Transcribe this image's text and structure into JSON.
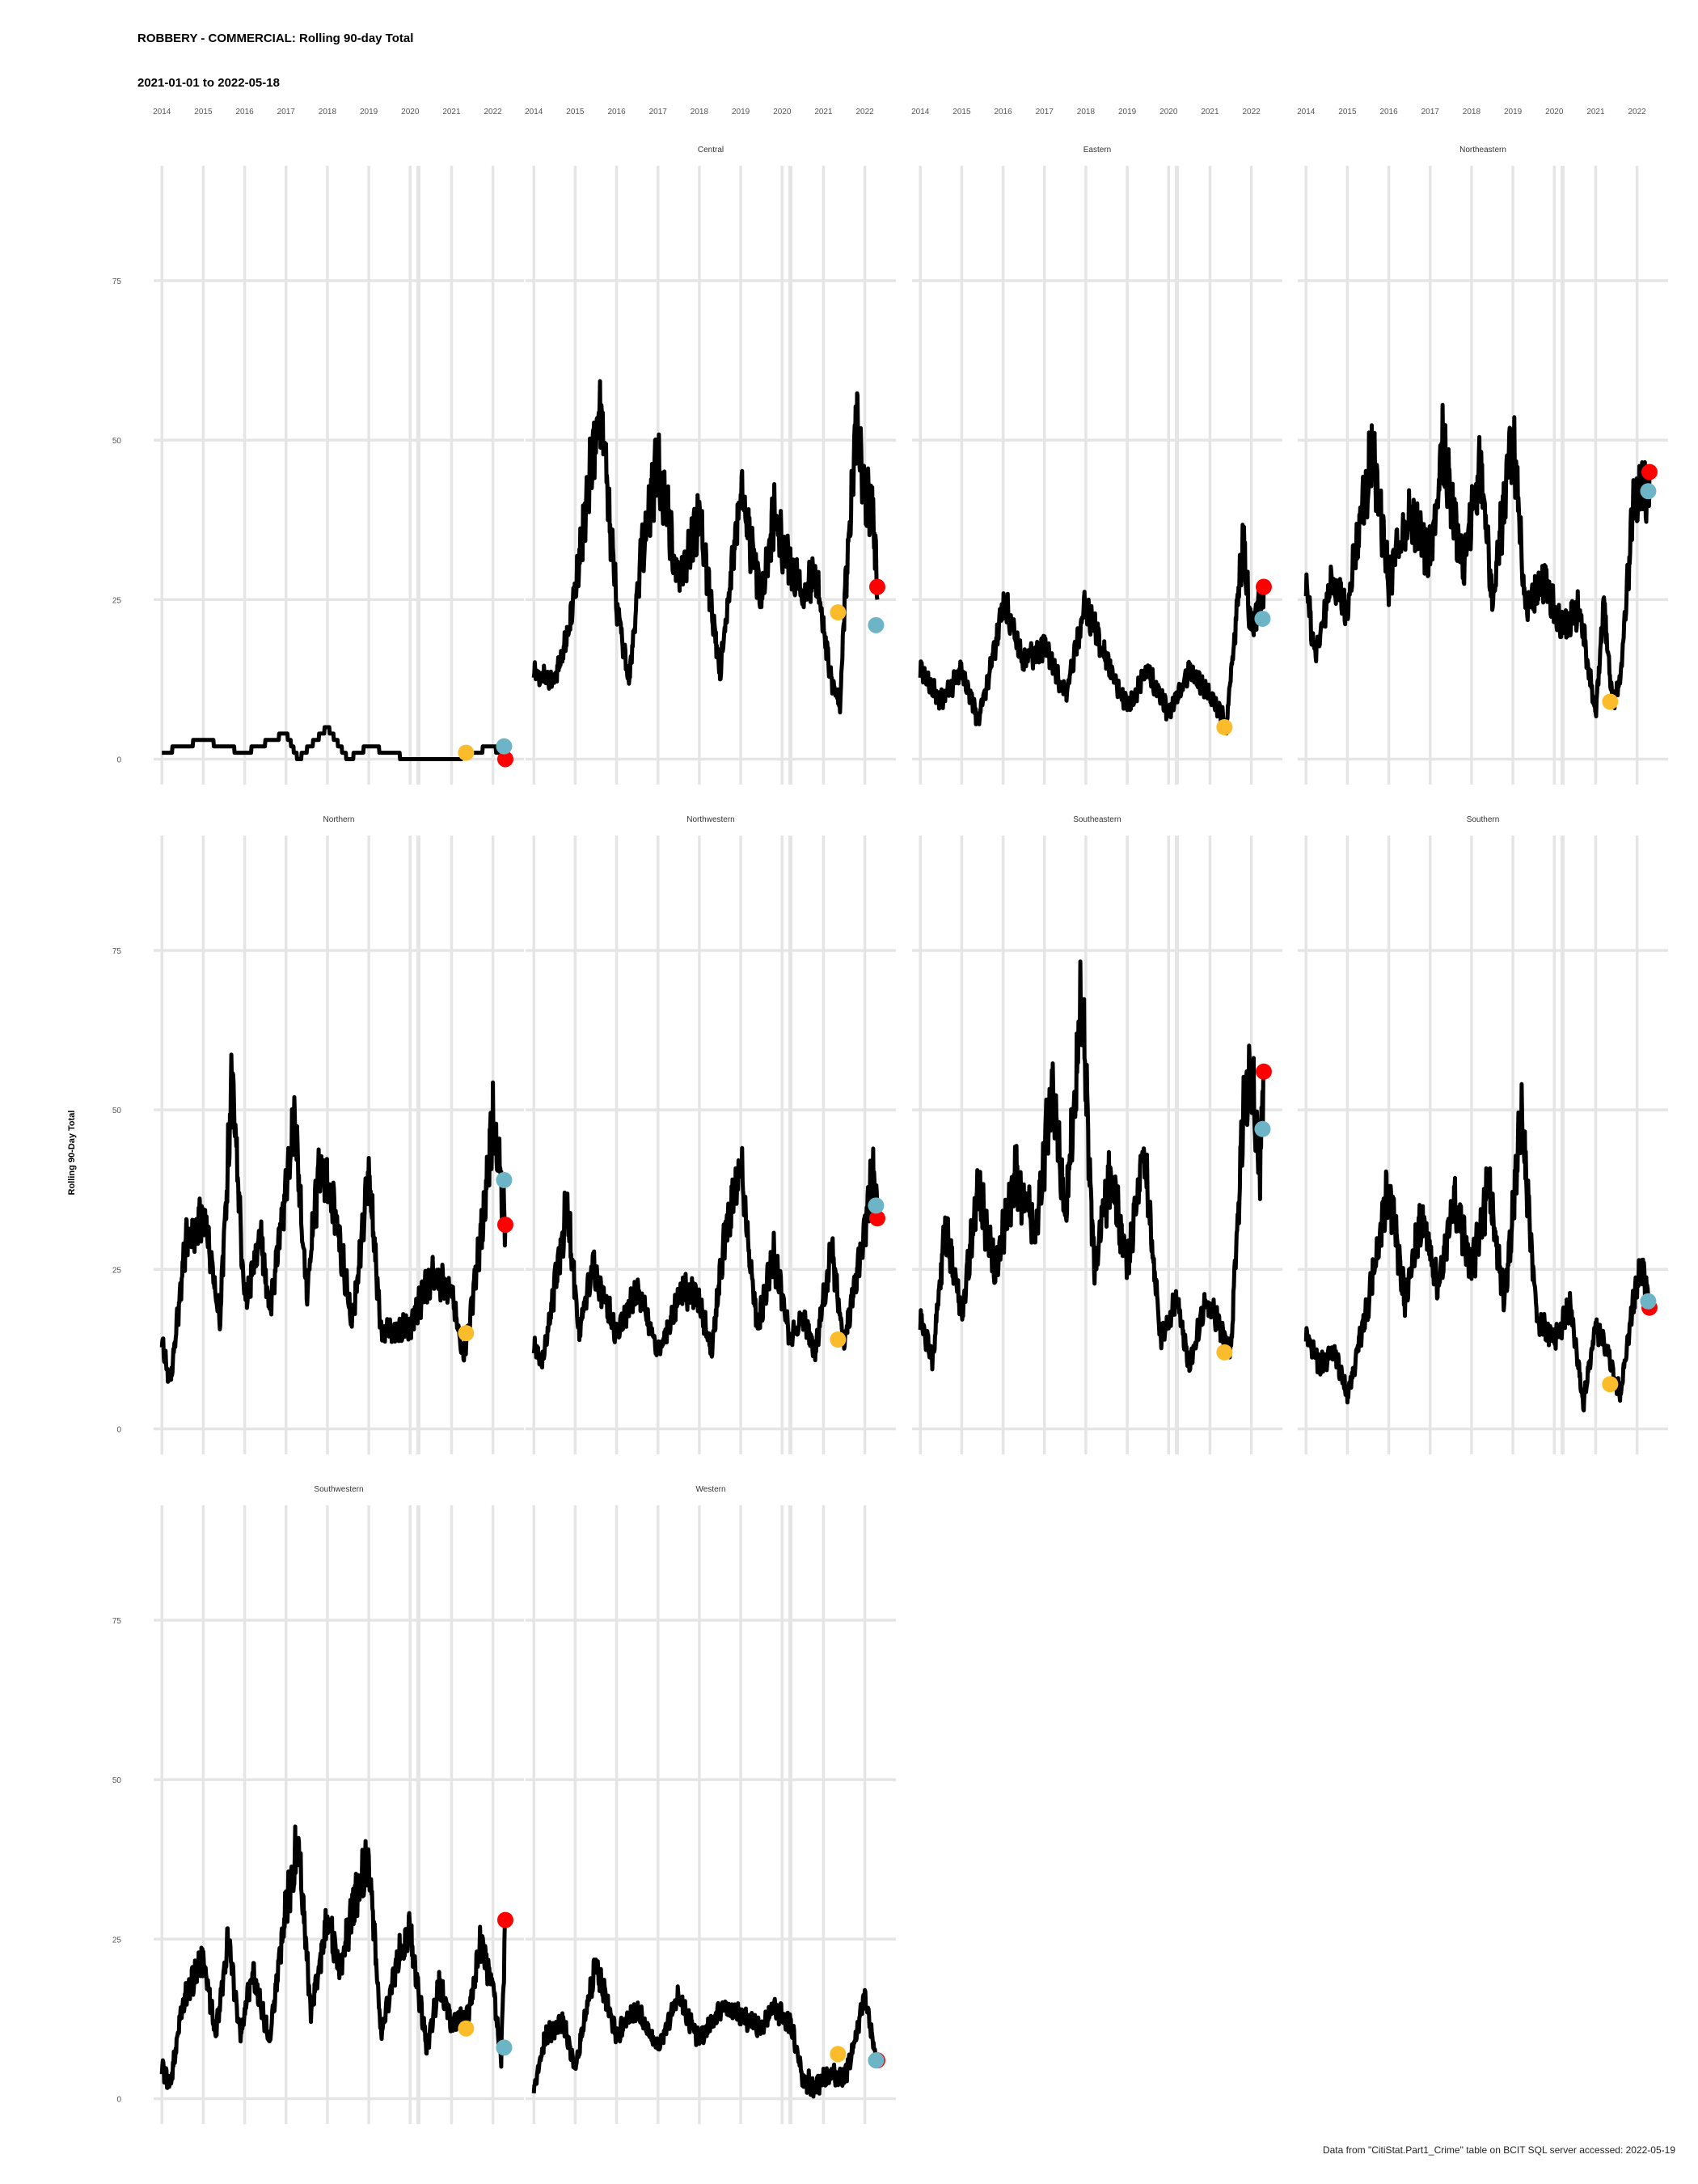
{
  "chart_data": {
    "type": "line",
    "title": "ROBBERY - COMMERCIAL: Rolling 90-day Total",
    "subtitle": "2021-01-01 to 2022-05-18",
    "ylabel": "Rolling 90-Day Total",
    "caption": "Data from \"CitiStat.Part1_Crime\" table on BCIT SQL server accessed: 2022-05-19",
    "x_ticks": [
      "2014",
      "2015",
      "2016",
      "2017",
      "2018",
      "2019",
      "2020",
      "2021",
      "2022"
    ],
    "y_ticks": [
      0,
      25,
      50,
      75
    ],
    "ylim": [
      -4,
      93
    ],
    "xlim": [
      2013.8,
      2022.75
    ],
    "colors": {
      "line": "#000000",
      "start_point": "#FBBC2B",
      "year_ago_point": "#6CB4C6",
      "latest_point": "#FF0000",
      "grid": "#E5E5E5"
    },
    "panels": [
      {
        "label": "",
        "anchors": [
          [
            2014.0,
            1
          ],
          [
            2015.0,
            3
          ],
          [
            2016.0,
            1
          ],
          [
            2017.0,
            4
          ],
          [
            2017.3,
            0
          ],
          [
            2018.0,
            5
          ],
          [
            2018.5,
            0
          ],
          [
            2019.0,
            2
          ],
          [
            2020.0,
            0
          ],
          [
            2021.0,
            0
          ],
          [
            2021.5,
            1
          ],
          [
            2022.0,
            2
          ],
          [
            2022.3,
            0
          ]
        ],
        "start": 1,
        "year_ago": 2,
        "latest": 0
      },
      {
        "label": "Central",
        "anchors": [
          [
            2014.0,
            14
          ],
          [
            2014.5,
            12
          ],
          [
            2014.9,
            22
          ],
          [
            2015.6,
            56
          ],
          [
            2016.0,
            25
          ],
          [
            2016.3,
            12
          ],
          [
            2016.6,
            32
          ],
          [
            2017.0,
            47
          ],
          [
            2017.5,
            28
          ],
          [
            2018.0,
            38
          ],
          [
            2018.5,
            14
          ],
          [
            2019.0,
            42
          ],
          [
            2019.5,
            25
          ],
          [
            2019.8,
            38
          ],
          [
            2020.5,
            25
          ],
          [
            2020.8,
            30
          ],
          [
            2021.2,
            12
          ],
          [
            2021.4,
            9
          ],
          [
            2021.5,
            23
          ],
          [
            2021.8,
            53
          ],
          [
            2022.0,
            40
          ],
          [
            2022.2,
            40
          ],
          [
            2022.3,
            25
          ]
        ],
        "start": 23,
        "year_ago": 21,
        "latest": 27
      },
      {
        "label": "Eastern",
        "anchors": [
          [
            2014.0,
            14
          ],
          [
            2014.5,
            9
          ],
          [
            2015.0,
            14
          ],
          [
            2015.4,
            6
          ],
          [
            2015.8,
            17
          ],
          [
            2016.0,
            25
          ],
          [
            2016.5,
            15
          ],
          [
            2017.0,
            18
          ],
          [
            2017.5,
            10
          ],
          [
            2018.0,
            24
          ],
          [
            2018.6,
            14
          ],
          [
            2019.0,
            8
          ],
          [
            2019.5,
            14
          ],
          [
            2020.0,
            7
          ],
          [
            2020.5,
            14
          ],
          [
            2021.0,
            10
          ],
          [
            2021.4,
            5
          ],
          [
            2021.6,
            20
          ],
          [
            2021.8,
            34
          ],
          [
            2022.0,
            20
          ],
          [
            2022.3,
            27
          ]
        ],
        "start": 5,
        "year_ago": 22,
        "latest": 27
      },
      {
        "label": "Northeastern",
        "anchors": [
          [
            2014.0,
            28
          ],
          [
            2014.2,
            16
          ],
          [
            2014.6,
            27
          ],
          [
            2015.0,
            24
          ],
          [
            2015.6,
            48
          ],
          [
            2016.0,
            28
          ],
          [
            2016.5,
            38
          ],
          [
            2017.0,
            32
          ],
          [
            2017.3,
            49
          ],
          [
            2017.8,
            30
          ],
          [
            2018.2,
            47
          ],
          [
            2018.5,
            25
          ],
          [
            2019.0,
            51
          ],
          [
            2019.3,
            24
          ],
          [
            2019.8,
            28
          ],
          [
            2020.2,
            20
          ],
          [
            2020.6,
            24
          ],
          [
            2021.0,
            7
          ],
          [
            2021.2,
            25
          ],
          [
            2021.4,
            9
          ],
          [
            2021.6,
            12
          ],
          [
            2021.9,
            40
          ],
          [
            2022.2,
            42
          ],
          [
            2022.3,
            45
          ]
        ],
        "start": 9,
        "year_ago": 42,
        "latest": 45
      },
      {
        "label": "Northern",
        "anchors": [
          [
            2014.0,
            14
          ],
          [
            2014.2,
            7
          ],
          [
            2014.6,
            30
          ],
          [
            2015.0,
            34
          ],
          [
            2015.4,
            17
          ],
          [
            2015.7,
            55
          ],
          [
            2016.0,
            20
          ],
          [
            2016.4,
            30
          ],
          [
            2016.6,
            18
          ],
          [
            2017.2,
            48
          ],
          [
            2017.5,
            22
          ],
          [
            2017.8,
            40
          ],
          [
            2018.2,
            34
          ],
          [
            2018.6,
            16
          ],
          [
            2019.0,
            40
          ],
          [
            2019.3,
            15
          ],
          [
            2020.0,
            16
          ],
          [
            2020.5,
            24
          ],
          [
            2021.0,
            22
          ],
          [
            2021.3,
            11
          ],
          [
            2021.7,
            30
          ],
          [
            2022.0,
            48
          ],
          [
            2022.2,
            39
          ],
          [
            2022.3,
            32
          ]
        ],
        "start": 15,
        "year_ago": 39,
        "latest": 32
      },
      {
        "label": "Northwestern",
        "anchors": [
          [
            2014.0,
            13
          ],
          [
            2014.2,
            10
          ],
          [
            2014.8,
            35
          ],
          [
            2015.1,
            15
          ],
          [
            2015.4,
            26
          ],
          [
            2016.0,
            15
          ],
          [
            2016.5,
            22
          ],
          [
            2017.0,
            12
          ],
          [
            2017.6,
            22
          ],
          [
            2018.0,
            20
          ],
          [
            2018.3,
            12
          ],
          [
            2018.6,
            30
          ],
          [
            2019.0,
            41
          ],
          [
            2019.4,
            16
          ],
          [
            2019.8,
            27
          ],
          [
            2020.2,
            14
          ],
          [
            2020.5,
            18
          ],
          [
            2020.8,
            12
          ],
          [
            2021.2,
            28
          ],
          [
            2021.5,
            13
          ],
          [
            2021.9,
            28
          ],
          [
            2022.2,
            40
          ],
          [
            2022.3,
            33
          ]
        ],
        "start": 14,
        "year_ago": 35,
        "latest": 33
      },
      {
        "label": "Southeastern",
        "anchors": [
          [
            2014.0,
            17
          ],
          [
            2014.3,
            11
          ],
          [
            2014.6,
            32
          ],
          [
            2015.0,
            18
          ],
          [
            2015.4,
            38
          ],
          [
            2015.8,
            25
          ],
          [
            2016.3,
            40
          ],
          [
            2016.8,
            30
          ],
          [
            2017.2,
            55
          ],
          [
            2017.5,
            32
          ],
          [
            2017.9,
            68
          ],
          [
            2018.2,
            25
          ],
          [
            2018.6,
            40
          ],
          [
            2019.0,
            25
          ],
          [
            2019.4,
            44
          ],
          [
            2019.8,
            14
          ],
          [
            2020.2,
            20
          ],
          [
            2020.5,
            10
          ],
          [
            2020.9,
            20
          ],
          [
            2021.2,
            17
          ],
          [
            2021.5,
            12
          ],
          [
            2021.8,
            50
          ],
          [
            2022.0,
            58
          ],
          [
            2022.2,
            40
          ],
          [
            2022.3,
            56
          ]
        ],
        "start": 12,
        "year_ago": 47,
        "latest": 56
      },
      {
        "label": "Southern",
        "anchors": [
          [
            2014.0,
            15
          ],
          [
            2014.3,
            10
          ],
          [
            2014.7,
            12
          ],
          [
            2015.0,
            5
          ],
          [
            2015.5,
            20
          ],
          [
            2016.0,
            38
          ],
          [
            2016.4,
            20
          ],
          [
            2016.8,
            34
          ],
          [
            2017.2,
            22
          ],
          [
            2017.6,
            36
          ],
          [
            2018.0,
            25
          ],
          [
            2018.4,
            38
          ],
          [
            2018.8,
            20
          ],
          [
            2019.2,
            49
          ],
          [
            2019.6,
            17
          ],
          [
            2020.0,
            14
          ],
          [
            2020.4,
            19
          ],
          [
            2020.7,
            4
          ],
          [
            2021.0,
            16
          ],
          [
            2021.3,
            12
          ],
          [
            2021.6,
            5
          ],
          [
            2021.9,
            20
          ],
          [
            2022.1,
            26
          ],
          [
            2022.3,
            19
          ]
        ],
        "start": 7,
        "year_ago": 20,
        "latest": 19
      },
      {
        "label": "Southwestern",
        "anchors": [
          [
            2014.0,
            5
          ],
          [
            2014.2,
            2
          ],
          [
            2014.5,
            15
          ],
          [
            2015.0,
            22
          ],
          [
            2015.3,
            10
          ],
          [
            2015.6,
            25
          ],
          [
            2015.9,
            10
          ],
          [
            2016.2,
            20
          ],
          [
            2016.6,
            9
          ],
          [
            2017.0,
            30
          ],
          [
            2017.3,
            40
          ],
          [
            2017.6,
            14
          ],
          [
            2018.0,
            28
          ],
          [
            2018.3,
            20
          ],
          [
            2018.6,
            30
          ],
          [
            2019.0,
            38
          ],
          [
            2019.3,
            10
          ],
          [
            2019.7,
            22
          ],
          [
            2020.0,
            26
          ],
          [
            2020.4,
            8
          ],
          [
            2020.7,
            18
          ],
          [
            2021.0,
            12
          ],
          [
            2021.4,
            13
          ],
          [
            2021.7,
            24
          ],
          [
            2022.0,
            18
          ],
          [
            2022.2,
            6
          ],
          [
            2022.3,
            28
          ]
        ],
        "start": 11,
        "year_ago": 8,
        "latest": 28
      },
      {
        "label": "Western",
        "anchors": [
          [
            2014.0,
            2
          ],
          [
            2014.3,
            10
          ],
          [
            2014.7,
            12
          ],
          [
            2015.0,
            5
          ],
          [
            2015.5,
            21
          ],
          [
            2016.0,
            10
          ],
          [
            2016.5,
            14
          ],
          [
            2017.0,
            8
          ],
          [
            2017.5,
            16
          ],
          [
            2018.0,
            9
          ],
          [
            2018.5,
            14
          ],
          [
            2019.0,
            13
          ],
          [
            2019.5,
            11
          ],
          [
            2019.8,
            14
          ],
          [
            2020.2,
            12
          ],
          [
            2020.5,
            3
          ],
          [
            2020.8,
            2
          ],
          [
            2021.2,
            4
          ],
          [
            2021.5,
            3
          ],
          [
            2021.8,
            10
          ],
          [
            2022.0,
            16
          ],
          [
            2022.2,
            8
          ],
          [
            2022.3,
            6
          ]
        ],
        "start": 7,
        "year_ago": 6,
        "latest": 6
      }
    ]
  }
}
